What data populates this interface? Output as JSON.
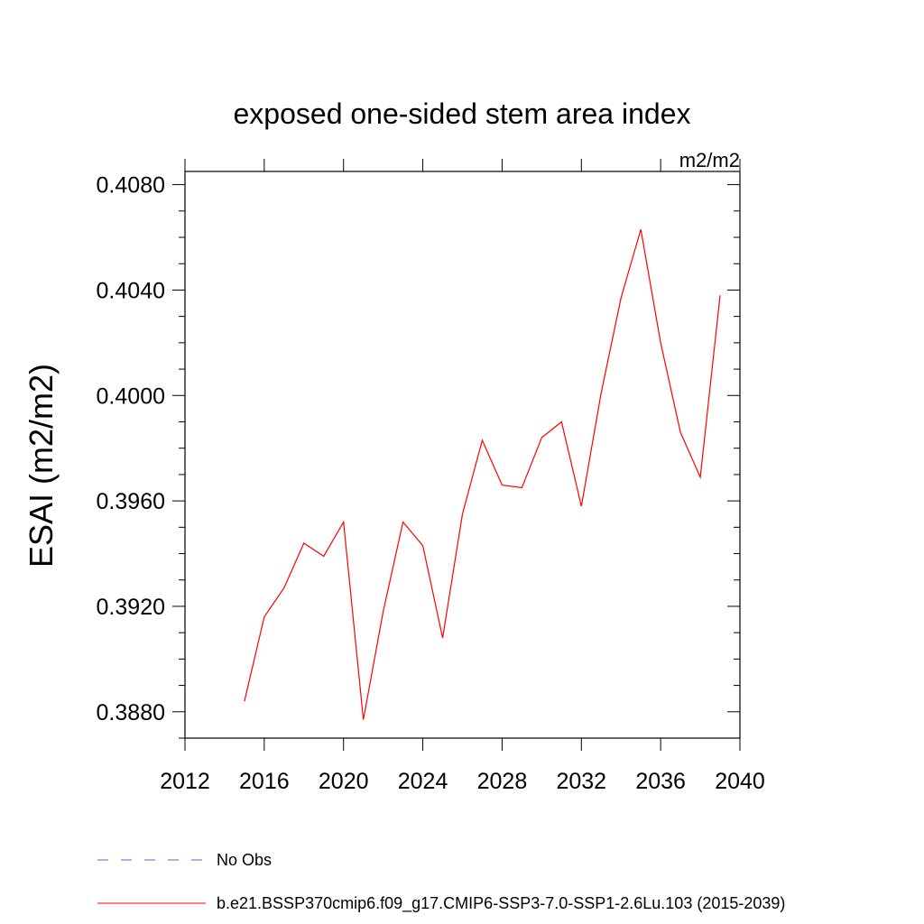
{
  "chart_data": {
    "type": "line",
    "title": "exposed one-sided stem area index",
    "units_label": "m2/m2",
    "ylabel": "ESAI  (m2/m2)",
    "xlabel": "",
    "xlim": [
      2012,
      2040
    ],
    "ylim": [
      0.387,
      0.4085
    ],
    "x_ticks": [
      2012,
      2016,
      2020,
      2024,
      2028,
      2032,
      2036,
      2040
    ],
    "x_tick_labels": [
      "2012",
      "2016",
      "2020",
      "2024",
      "2028",
      "2032",
      "2036",
      "2040"
    ],
    "y_ticks": [
      0.388,
      0.392,
      0.396,
      0.4,
      0.404,
      0.408
    ],
    "y_tick_labels": [
      "0.3880",
      "0.3920",
      "0.3960",
      "0.4000",
      "0.4040",
      "0.4080"
    ],
    "series": [
      {
        "name": "b.e21.BSSP370cmip6.f09_g17.CMIP6-SSP3-7.0-SSP1-2.6Lu.103 (2015-2039)",
        "color": "#ff0000",
        "x": [
          2015,
          2016,
          2017,
          2018,
          2019,
          2020,
          2021,
          2022,
          2023,
          2024,
          2025,
          2026,
          2027,
          2028,
          2029,
          2030,
          2031,
          2032,
          2033,
          2034,
          2035,
          2036,
          2037,
          2038,
          2039
        ],
        "y": [
          0.3884,
          0.3916,
          0.3927,
          0.3944,
          0.3939,
          0.3952,
          0.3877,
          0.3918,
          0.3952,
          0.3943,
          0.3908,
          0.3955,
          0.3983,
          0.3966,
          0.3965,
          0.3984,
          0.399,
          0.3958,
          0.4001,
          0.4037,
          0.4063,
          0.402,
          0.3986,
          0.3969,
          0.4038
        ]
      }
    ],
    "legend": [
      {
        "label": "No Obs",
        "style": "dashed",
        "color": "#6a5acd"
      },
      {
        "label": "b.e21.BSSP370cmip6.f09_g17.CMIP6-SSP3-7.0-SSP1-2.6Lu.103 (2015-2039)",
        "style": "solid",
        "color": "#ff0000"
      }
    ]
  }
}
